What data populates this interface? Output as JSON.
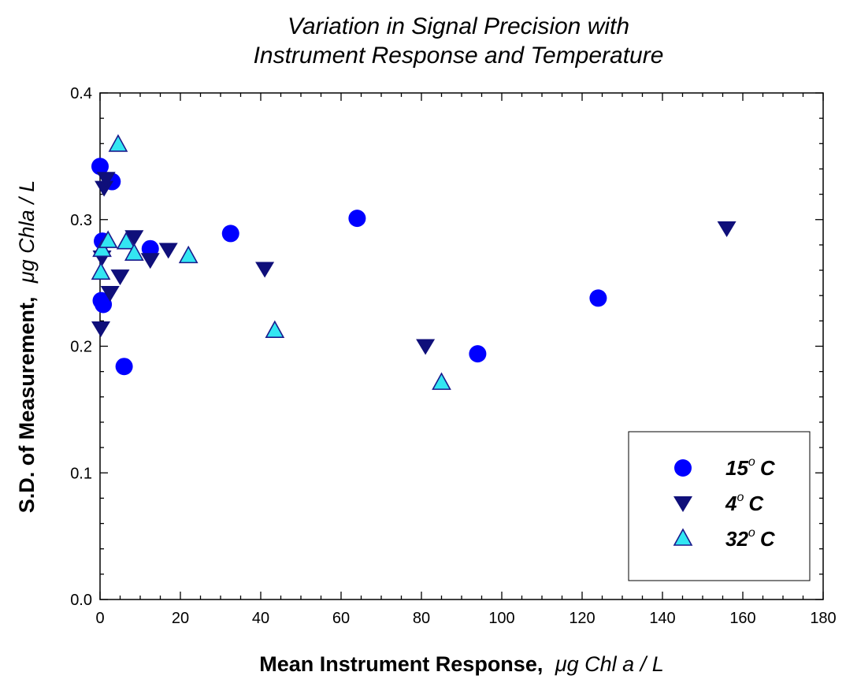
{
  "chart_data": {
    "type": "scatter",
    "title_line1": "Variation in Signal Precision with",
    "title_line2": "Instrument Response and Temperature",
    "xlabel_text": "Mean Instrument Response,",
    "xlabel_unit": "μg Chl a / L",
    "ylabel_text": "S.D. of Measurement,",
    "ylabel_unit": "μg Chla / L",
    "xlim": [
      0,
      180
    ],
    "ylim": [
      0.0,
      0.4
    ],
    "x_ticks": [
      "0",
      "20",
      "40",
      "60",
      "80",
      "100",
      "120",
      "140",
      "160",
      "180"
    ],
    "y_ticks": [
      "0.0",
      "0.1",
      "0.2",
      "0.3",
      "0.4"
    ],
    "legend_position": "bottom-right",
    "series": [
      {
        "name": "15",
        "name_suffix": "C",
        "marker": "circle",
        "color": "#0000ff",
        "points": [
          [
            0,
            0.342
          ],
          [
            0.3,
            0.236
          ],
          [
            0.6,
            0.283
          ],
          [
            0.8,
            0.233
          ],
          [
            3,
            0.33
          ],
          [
            6,
            0.184
          ],
          [
            12.5,
            0.277
          ],
          [
            32.5,
            0.289
          ],
          [
            64,
            0.301
          ],
          [
            94,
            0.194
          ],
          [
            124,
            0.238
          ]
        ]
      },
      {
        "name": "4",
        "name_suffix": "C",
        "marker": "triangle-down",
        "color": "#0f0f7a",
        "points": [
          [
            0.2,
            0.214
          ],
          [
            0.5,
            0.27
          ],
          [
            1,
            0.325
          ],
          [
            1.5,
            0.332
          ],
          [
            2.5,
            0.242
          ],
          [
            5,
            0.255
          ],
          [
            8.5,
            0.286
          ],
          [
            12.5,
            0.268
          ],
          [
            17,
            0.276
          ],
          [
            41,
            0.261
          ],
          [
            81,
            0.2
          ],
          [
            156,
            0.293
          ]
        ]
      },
      {
        "name": "32",
        "name_suffix": "C",
        "marker": "triangle-up",
        "color": "#33e6f2",
        "points": [
          [
            0.2,
            0.258
          ],
          [
            0.5,
            0.276
          ],
          [
            2,
            0.283
          ],
          [
            4.5,
            0.359
          ],
          [
            6.5,
            0.282
          ],
          [
            8.5,
            0.273
          ],
          [
            22,
            0.271
          ],
          [
            43.5,
            0.212
          ],
          [
            85,
            0.171
          ]
        ]
      }
    ]
  }
}
